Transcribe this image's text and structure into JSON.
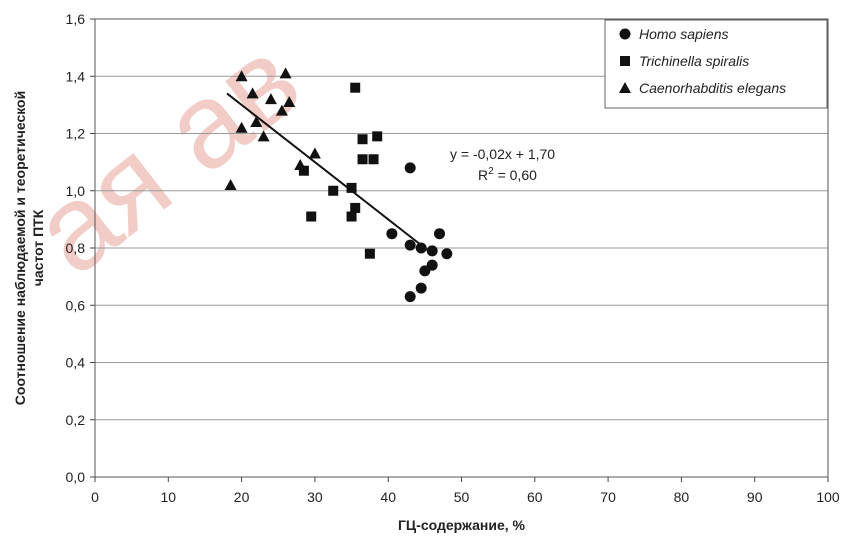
{
  "chart_data": {
    "type": "scatter",
    "xlabel": "ГЦ-содержание, %",
    "ylabel_lines": [
      "Соотношение наблюдаемой и теоретической",
      "частот ПТК"
    ],
    "xlim": [
      0,
      100
    ],
    "ylim": [
      0.0,
      1.6
    ],
    "x_ticks": [
      "0",
      "10",
      "20",
      "30",
      "40",
      "50",
      "60",
      "70",
      "80",
      "90",
      "100"
    ],
    "y_ticks": [
      "0,0",
      "0,2",
      "0,4",
      "0,6",
      "0,8",
      "1,0",
      "1,2",
      "1,4",
      "1,6"
    ],
    "grid": "horizontal",
    "legend_position": "top-right",
    "series": [
      {
        "name": "Homo sapiens",
        "marker": "circle",
        "points": [
          [
            43,
            1.08
          ],
          [
            40.5,
            0.85
          ],
          [
            43,
            0.81
          ],
          [
            44.5,
            0.8
          ],
          [
            46,
            0.79
          ],
          [
            47,
            0.85
          ],
          [
            48,
            0.78
          ],
          [
            46,
            0.74
          ],
          [
            45,
            0.72
          ],
          [
            44.5,
            0.66
          ],
          [
            43,
            0.63
          ]
        ]
      },
      {
        "name": "Trichinella spiralis",
        "marker": "square",
        "points": [
          [
            35.5,
            1.36
          ],
          [
            36.5,
            1.18
          ],
          [
            38.5,
            1.19
          ],
          [
            36.5,
            1.11
          ],
          [
            38,
            1.11
          ],
          [
            28.5,
            1.07
          ],
          [
            32.5,
            1.0
          ],
          [
            35,
            1.01
          ],
          [
            35.5,
            0.94
          ],
          [
            35,
            0.91
          ],
          [
            29.5,
            0.91
          ],
          [
            37.5,
            0.78
          ]
        ]
      },
      {
        "name": "Caenorhabditis elegans",
        "marker": "triangle",
        "points": [
          [
            20,
            1.4
          ],
          [
            26,
            1.41
          ],
          [
            21.5,
            1.34
          ],
          [
            24,
            1.32
          ],
          [
            26.5,
            1.31
          ],
          [
            25.5,
            1.28
          ],
          [
            22,
            1.24
          ],
          [
            20,
            1.22
          ],
          [
            23,
            1.19
          ],
          [
            30,
            1.13
          ],
          [
            28,
            1.09
          ],
          [
            18.5,
            1.02
          ]
        ]
      }
    ],
    "trendline": {
      "x_from": 18,
      "x_to": 45.5,
      "slope": -0.02,
      "intercept": 1.7
    },
    "annotation": {
      "equation": "y = -0,02x + 1,70",
      "r2_prefix": "R",
      "r2_sup": "2",
      "r2_value": " = 0,60"
    }
  },
  "watermark_text": "ая ав"
}
